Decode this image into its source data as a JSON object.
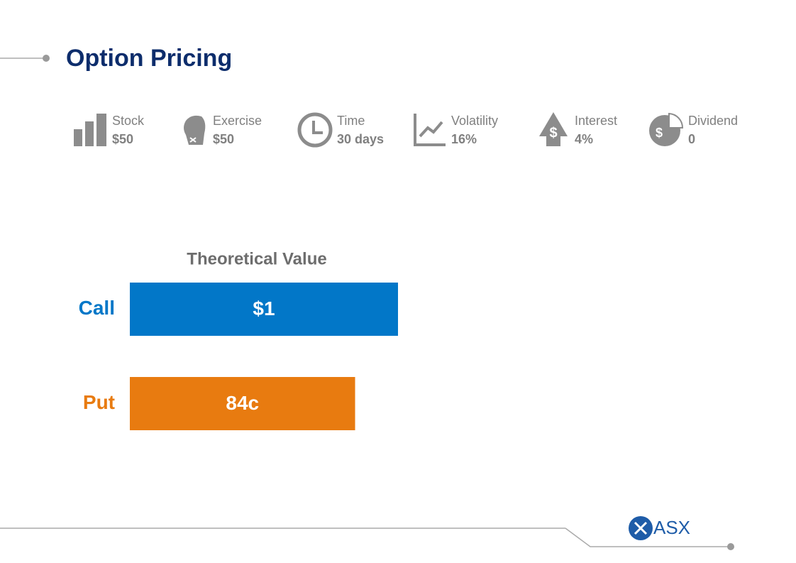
{
  "title": "Option Pricing",
  "parameters": [
    {
      "label": "Stock",
      "value": "$50"
    },
    {
      "label": "Exercise",
      "value": "$50"
    },
    {
      "label": "Time",
      "value": "30 days"
    },
    {
      "label": "Volatility",
      "value": "16%"
    },
    {
      "label": "Interest",
      "value": "4%"
    },
    {
      "label": "Dividend",
      "value": "0"
    }
  ],
  "chart_data": {
    "type": "bar",
    "orientation": "horizontal",
    "title": "Theoretical Value",
    "categories": [
      "Call",
      "Put"
    ],
    "values": [
      1,
      0.84
    ],
    "value_labels": [
      "$1",
      "84c"
    ],
    "colors": [
      "#0277c8",
      "#e87b10"
    ]
  },
  "logo": "ASX"
}
